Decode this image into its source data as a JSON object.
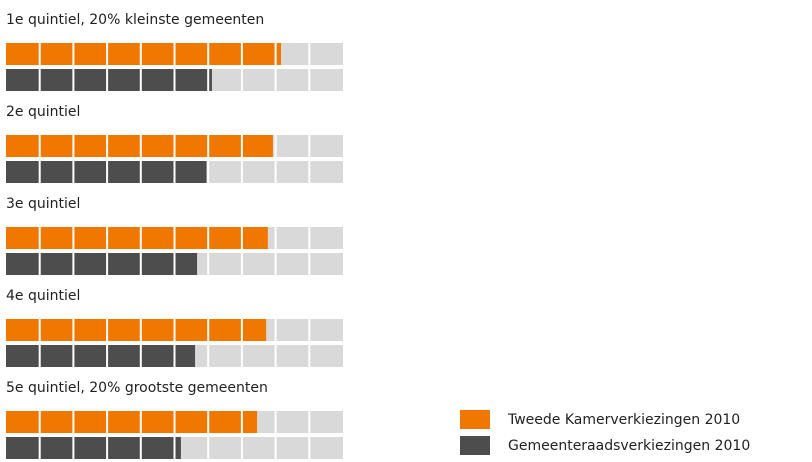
{
  "chart_data": {
    "type": "bar",
    "orientation": "horizontal",
    "categories": [
      "1e quintiel, 20% kleinste gemeenten",
      "2e quintiel",
      "3e quintiel",
      "4e quintiel",
      "5e quintiel, 20% grootste gemeenten"
    ],
    "series": [
      {
        "name": "Tweede Kamerverkiezingen 2010",
        "color": "#f07800",
        "values": [
          81.6,
          79.2,
          77.7,
          77.2,
          74.5
        ]
      },
      {
        "name": "Gemeenteraadsverkiezingen 2010",
        "color": "#4d4d4d",
        "values": [
          61.1,
          59.5,
          56.7,
          56.1,
          51.9
        ]
      }
    ],
    "xlim": [
      0,
      100
    ],
    "background_color": "#d9d9d9"
  }
}
